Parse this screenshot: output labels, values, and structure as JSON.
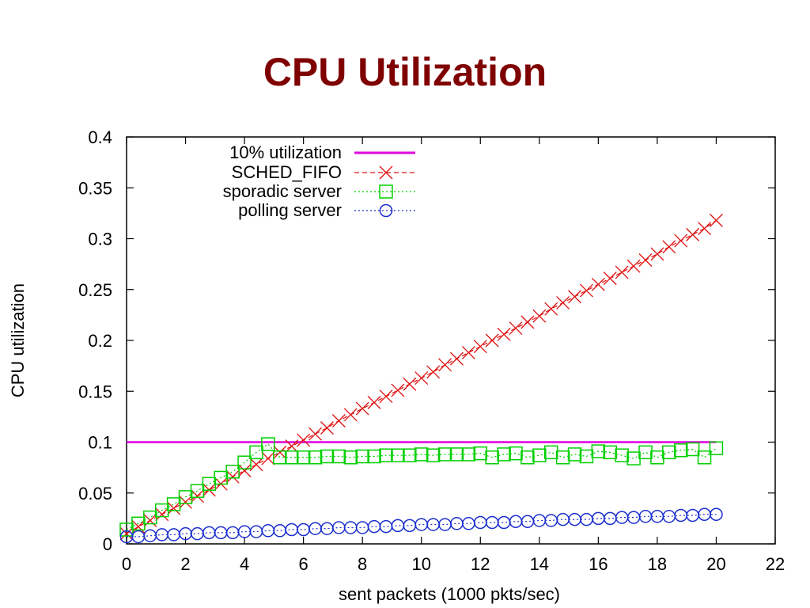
{
  "slide": {
    "title": "CPU Utilization"
  },
  "colors": {
    "title": "#7f0000",
    "threshold": "#e000e0",
    "fifo": "#e01010",
    "sporadic": "#00d000",
    "polling": "#1a2ed0"
  },
  "chart_data": {
    "type": "line",
    "xlabel": "sent packets (1000 pkts/sec)",
    "ylabel": "CPU utilization",
    "xlim": [
      0,
      22
    ],
    "ylim": [
      0,
      0.4
    ],
    "xticks": [
      "0",
      "2",
      "4",
      "6",
      "8",
      "10",
      "12",
      "14",
      "16",
      "18",
      "20",
      "22"
    ],
    "yticks": [
      "0",
      "0.05",
      "0.1",
      "0.15",
      "0.2",
      "0.25",
      "0.3",
      "0.35",
      "0.4"
    ],
    "grid": false,
    "legend_position": "top-left",
    "series": [
      {
        "name": "10% utilization",
        "marker": "none",
        "line": "solid",
        "color": "#e000e0",
        "x": [
          0,
          20
        ],
        "y": [
          0.1,
          0.1
        ]
      },
      {
        "name": "SCHED_FIFO",
        "marker": "x",
        "line": "dashed",
        "color": "#e01010",
        "x": [
          0,
          0.4,
          0.8,
          1.2,
          1.6,
          2.0,
          2.4,
          2.8,
          3.2,
          3.6,
          4.0,
          4.4,
          4.8,
          5.2,
          5.6,
          6.0,
          6.4,
          6.8,
          7.2,
          7.6,
          8.0,
          8.4,
          8.8,
          9.2,
          9.6,
          10.0,
          10.4,
          10.8,
          11.2,
          11.6,
          12.0,
          12.4,
          12.8,
          13.2,
          13.6,
          14.0,
          14.4,
          14.8,
          15.2,
          15.6,
          16.0,
          16.4,
          16.8,
          17.2,
          17.6,
          18.0,
          18.4,
          18.8,
          19.2,
          19.6,
          20.0
        ],
        "y": [
          0.01,
          0.017,
          0.023,
          0.029,
          0.035,
          0.041,
          0.047,
          0.053,
          0.059,
          0.066,
          0.072,
          0.078,
          0.084,
          0.09,
          0.096,
          0.102,
          0.108,
          0.114,
          0.121,
          0.127,
          0.133,
          0.139,
          0.145,
          0.151,
          0.157,
          0.163,
          0.169,
          0.176,
          0.182,
          0.188,
          0.194,
          0.2,
          0.206,
          0.212,
          0.218,
          0.224,
          0.231,
          0.237,
          0.243,
          0.249,
          0.255,
          0.261,
          0.267,
          0.273,
          0.279,
          0.285,
          0.292,
          0.298,
          0.304,
          0.31,
          0.318
        ]
      },
      {
        "name": "sporadic server",
        "marker": "square",
        "line": "dotted",
        "color": "#00d000",
        "x": [
          0,
          0.4,
          0.8,
          1.2,
          1.6,
          2.0,
          2.4,
          2.8,
          3.2,
          3.6,
          4.0,
          4.4,
          4.8,
          5.2,
          5.6,
          6.0,
          6.4,
          6.8,
          7.2,
          7.6,
          8.0,
          8.4,
          8.8,
          9.2,
          9.6,
          10.0,
          10.4,
          10.8,
          11.2,
          11.6,
          12.0,
          12.4,
          12.8,
          13.2,
          13.6,
          14.0,
          14.4,
          14.8,
          15.2,
          15.6,
          16.0,
          16.4,
          16.8,
          17.2,
          17.6,
          18.0,
          18.4,
          18.8,
          19.2,
          19.6,
          20.0
        ],
        "y": [
          0.014,
          0.02,
          0.026,
          0.033,
          0.039,
          0.046,
          0.052,
          0.059,
          0.065,
          0.071,
          0.08,
          0.09,
          0.098,
          0.085,
          0.085,
          0.085,
          0.085,
          0.086,
          0.086,
          0.085,
          0.086,
          0.086,
          0.087,
          0.087,
          0.087,
          0.088,
          0.087,
          0.088,
          0.088,
          0.088,
          0.089,
          0.085,
          0.088,
          0.089,
          0.085,
          0.087,
          0.09,
          0.085,
          0.088,
          0.086,
          0.091,
          0.09,
          0.087,
          0.084,
          0.09,
          0.085,
          0.09,
          0.092,
          0.093,
          0.085,
          0.094
        ]
      },
      {
        "name": "polling server",
        "marker": "circle",
        "line": "dotted",
        "color": "#1a2ed0",
        "x": [
          0,
          0.4,
          0.8,
          1.2,
          1.6,
          2.0,
          2.4,
          2.8,
          3.2,
          3.6,
          4.0,
          4.4,
          4.8,
          5.2,
          5.6,
          6.0,
          6.4,
          6.8,
          7.2,
          7.6,
          8.0,
          8.4,
          8.8,
          9.2,
          9.6,
          10.0,
          10.4,
          10.8,
          11.2,
          11.6,
          12.0,
          12.4,
          12.8,
          13.2,
          13.6,
          14.0,
          14.4,
          14.8,
          15.2,
          15.6,
          16.0,
          16.4,
          16.8,
          17.2,
          17.6,
          18.0,
          18.4,
          18.8,
          19.2,
          19.6,
          20.0
        ],
        "y": [
          0.007,
          0.007,
          0.008,
          0.009,
          0.009,
          0.01,
          0.01,
          0.011,
          0.011,
          0.011,
          0.012,
          0.012,
          0.013,
          0.013,
          0.014,
          0.014,
          0.015,
          0.015,
          0.016,
          0.016,
          0.016,
          0.017,
          0.017,
          0.018,
          0.018,
          0.019,
          0.019,
          0.019,
          0.02,
          0.02,
          0.021,
          0.021,
          0.021,
          0.022,
          0.022,
          0.023,
          0.023,
          0.024,
          0.024,
          0.024,
          0.025,
          0.025,
          0.026,
          0.026,
          0.027,
          0.027,
          0.027,
          0.028,
          0.028,
          0.029,
          0.029
        ]
      }
    ]
  }
}
